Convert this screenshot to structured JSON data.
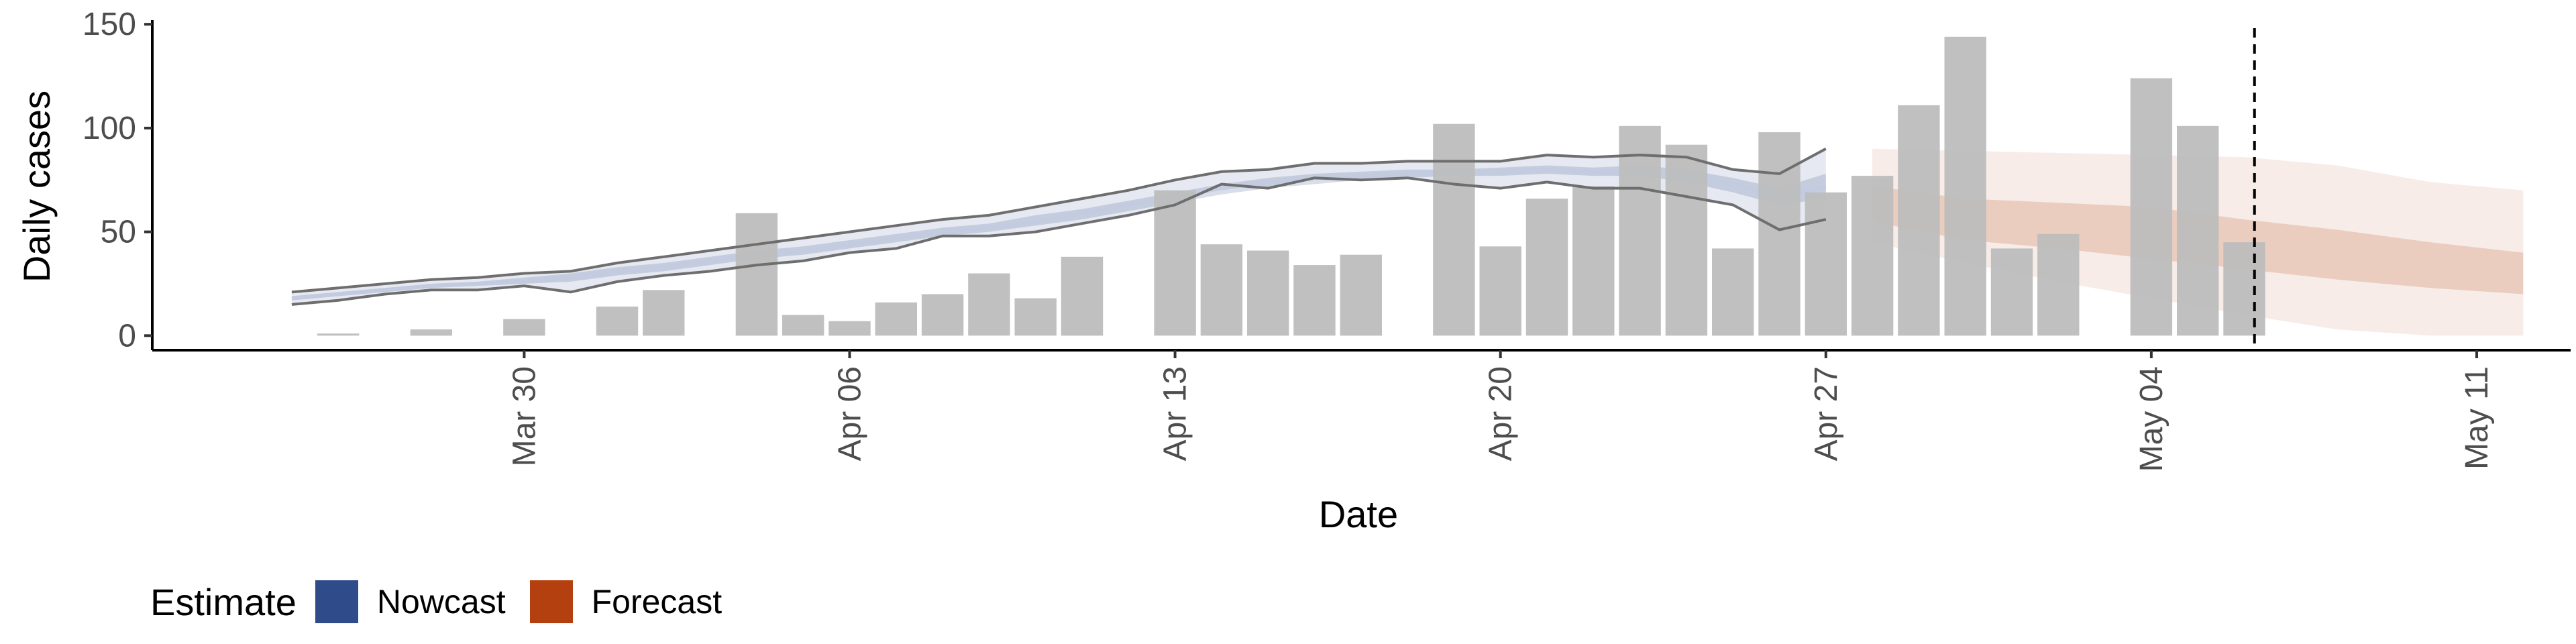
{
  "chart_data": {
    "type": "bar",
    "xlabel": "Date",
    "ylabel": "Daily cases",
    "xlim": [
      "2020-03-22",
      "2020-05-15"
    ],
    "ylim": [
      -7,
      152
    ],
    "y_ticks": [
      0,
      50,
      100,
      150
    ],
    "x_ticks": [
      {
        "date": "2020-03-30",
        "label": "Mar 30"
      },
      {
        "date": "2020-04-06",
        "label": "Apr 06"
      },
      {
        "date": "2020-04-13",
        "label": "Apr 13"
      },
      {
        "date": "2020-04-20",
        "label": "Apr 20"
      },
      {
        "date": "2020-04-27",
        "label": "Apr 27"
      },
      {
        "date": "2020-05-04",
        "label": "May 04"
      },
      {
        "date": "2020-05-11",
        "label": "May 11"
      }
    ],
    "grid": false,
    "bar_color": "#bdbdbd",
    "cases": [
      {
        "date": "2020-03-26",
        "value": 1
      },
      {
        "date": "2020-03-28",
        "value": 3
      },
      {
        "date": "2020-03-30",
        "value": 8
      },
      {
        "date": "2020-04-01",
        "value": 14
      },
      {
        "date": "2020-04-02",
        "value": 22
      },
      {
        "date": "2020-04-04",
        "value": 59
      },
      {
        "date": "2020-04-05",
        "value": 10
      },
      {
        "date": "2020-04-06",
        "value": 7
      },
      {
        "date": "2020-04-07",
        "value": 16
      },
      {
        "date": "2020-04-08",
        "value": 20
      },
      {
        "date": "2020-04-09",
        "value": 30
      },
      {
        "date": "2020-04-10",
        "value": 18
      },
      {
        "date": "2020-04-11",
        "value": 38
      },
      {
        "date": "2020-04-13",
        "value": 70
      },
      {
        "date": "2020-04-14",
        "value": 44
      },
      {
        "date": "2020-04-15",
        "value": 41
      },
      {
        "date": "2020-04-16",
        "value": 34
      },
      {
        "date": "2020-04-17",
        "value": 39
      },
      {
        "date": "2020-04-19",
        "value": 102
      },
      {
        "date": "2020-04-20",
        "value": 43
      },
      {
        "date": "2020-04-21",
        "value": 66
      },
      {
        "date": "2020-04-22",
        "value": 72
      },
      {
        "date": "2020-04-23",
        "value": 101
      },
      {
        "date": "2020-04-24",
        "value": 92
      },
      {
        "date": "2020-04-25",
        "value": 42
      },
      {
        "date": "2020-04-26",
        "value": 98
      },
      {
        "date": "2020-04-27",
        "value": 69
      },
      {
        "date": "2020-04-28",
        "value": 77
      },
      {
        "date": "2020-04-29",
        "value": 111
      },
      {
        "date": "2020-04-30",
        "value": 144
      },
      {
        "date": "2020-05-01",
        "value": 42
      },
      {
        "date": "2020-05-02",
        "value": 49
      },
      {
        "date": "2020-05-04",
        "value": 124
      },
      {
        "date": "2020-05-05",
        "value": 101
      },
      {
        "date": "2020-05-06",
        "value": 45
      }
    ],
    "nowcast": {
      "name": "Nowcast",
      "color": "#2f4b8a",
      "dates": [
        "2020-03-25",
        "2020-03-26",
        "2020-03-27",
        "2020-03-28",
        "2020-03-29",
        "2020-03-30",
        "2020-03-31",
        "2020-04-01",
        "2020-04-02",
        "2020-04-03",
        "2020-04-04",
        "2020-04-05",
        "2020-04-06",
        "2020-04-07",
        "2020-04-08",
        "2020-04-09",
        "2020-04-10",
        "2020-04-11",
        "2020-04-12",
        "2020-04-13",
        "2020-04-14",
        "2020-04-15",
        "2020-04-16",
        "2020-04-17",
        "2020-04-18",
        "2020-04-19",
        "2020-04-20",
        "2020-04-21",
        "2020-04-22",
        "2020-04-23",
        "2020-04-24",
        "2020-04-25",
        "2020-04-26",
        "2020-04-27"
      ],
      "upper90": [
        21,
        23,
        25,
        27,
        28,
        30,
        31,
        35,
        38,
        41,
        44,
        47,
        50,
        53,
        56,
        58,
        62,
        66,
        70,
        75,
        79,
        80,
        83,
        83,
        84,
        84,
        84,
        87,
        86,
        87,
        86,
        80,
        78,
        90
      ],
      "upper50": [
        19,
        21,
        23,
        25,
        26,
        28,
        30,
        33,
        35,
        38,
        41,
        43,
        46,
        49,
        52,
        54,
        58,
        61,
        65,
        69,
        73,
        76,
        78,
        79,
        80,
        80,
        81,
        82,
        81,
        82,
        80,
        76,
        71,
        78
      ],
      "median": [
        18,
        20,
        22,
        24,
        25,
        26,
        28,
        31,
        33,
        36,
        39,
        41,
        44,
        47,
        50,
        52,
        55,
        59,
        63,
        67,
        71,
        74,
        76,
        77,
        78,
        78,
        79,
        80,
        79,
        79,
        77,
        73,
        67,
        72
      ],
      "lower50": [
        17,
        19,
        21,
        23,
        24,
        25,
        26,
        29,
        31,
        34,
        37,
        39,
        42,
        45,
        48,
        50,
        53,
        56,
        60,
        64,
        68,
        71,
        73,
        75,
        76,
        77,
        77,
        78,
        77,
        77,
        74,
        69,
        63,
        66
      ],
      "lower90": [
        15,
        17,
        20,
        22,
        22,
        24,
        21,
        26,
        29,
        31,
        34,
        36,
        40,
        42,
        48,
        48,
        50,
        54,
        58,
        63,
        73,
        71,
        76,
        75,
        76,
        73,
        71,
        74,
        71,
        71,
        67,
        63,
        51,
        56
      ]
    },
    "forecast": {
      "name": "Forecast",
      "color": "#b5400f",
      "dates": [
        "2020-04-28",
        "2020-04-30",
        "2020-05-02",
        "2020-05-04",
        "2020-05-06",
        "2020-05-08",
        "2020-05-10",
        "2020-05-12"
      ],
      "upper90": [
        90,
        89,
        88,
        87,
        86,
        82,
        74,
        70
      ],
      "upper50": [
        72,
        66,
        64,
        62,
        56,
        51,
        45,
        40
      ],
      "lower50": [
        55,
        46,
        42,
        37,
        32,
        27,
        23,
        20
      ],
      "lower90": [
        45,
        35,
        26,
        18,
        10,
        3,
        0,
        0
      ]
    },
    "cutoff_line": {
      "date": "2020-05-06",
      "style": "dashed"
    },
    "legend": {
      "title": "Estimate",
      "position": "bottom-left",
      "items": [
        {
          "label": "Nowcast",
          "color": "#2f4b8a"
        },
        {
          "label": "Forecast",
          "color": "#b5400f"
        }
      ]
    }
  }
}
